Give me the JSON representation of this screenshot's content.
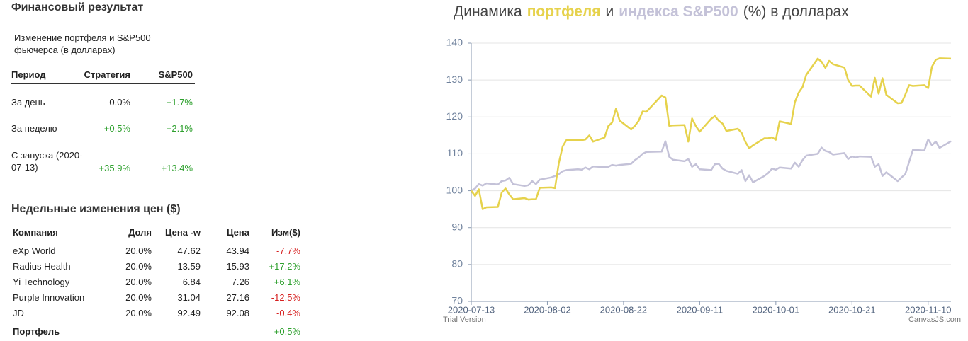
{
  "summary": {
    "title": "Финансовый результат",
    "subtitle": "Изменение портфеля и S&P500 фьючерса (в долларах)",
    "headers": [
      "Период",
      "Стратегия",
      "S&P500"
    ],
    "rows": [
      [
        "За день",
        "0.0%",
        "+1.7%"
      ],
      [
        "За неделю",
        "+0.5%",
        "+2.1%"
      ],
      [
        "С запуска (2020-07-13)",
        "+35.9%",
        "+13.4%"
      ]
    ]
  },
  "weekly": {
    "title": "Недельные изменения цен ($)",
    "headers": [
      "Компания",
      "Доля",
      "Цена -w",
      "Цена",
      "Изм($)"
    ],
    "rows": [
      [
        "eXp World",
        "20.0%",
        "47.62",
        "43.94",
        "-7.7%"
      ],
      [
        "Radius Health",
        "20.0%",
        "13.59",
        "15.93",
        "+17.2%"
      ],
      [
        "Yi Technology",
        "20.0%",
        "6.84",
        "7.26",
        "+6.1%"
      ],
      [
        "Purple Innovation",
        "20.0%",
        "31.04",
        "27.16",
        "-12.5%"
      ],
      [
        "JD",
        "20.0%",
        "92.49",
        "92.08",
        "-0.4%"
      ]
    ],
    "total": [
      "Портфель",
      "+0.5%"
    ]
  },
  "chart_data": {
    "type": "line",
    "title_parts": [
      "Динамика",
      "и",
      "(%) в долларах"
    ],
    "watermark": "Trial Version",
    "credit": "CanvasJS.com",
    "x": [
      "2020-07-13",
      "2020-07-14",
      "2020-07-15",
      "2020-07-16",
      "2020-07-17",
      "2020-07-20",
      "2020-07-21",
      "2020-07-22",
      "2020-07-23",
      "2020-07-24",
      "2020-07-27",
      "2020-07-28",
      "2020-07-29",
      "2020-07-30",
      "2020-07-31",
      "2020-08-03",
      "2020-08-04",
      "2020-08-05",
      "2020-08-06",
      "2020-08-07",
      "2020-08-10",
      "2020-08-11",
      "2020-08-12",
      "2020-08-13",
      "2020-08-14",
      "2020-08-17",
      "2020-08-18",
      "2020-08-19",
      "2020-08-20",
      "2020-08-21",
      "2020-08-24",
      "2020-08-25",
      "2020-08-26",
      "2020-08-27",
      "2020-08-28",
      "2020-09-01",
      "2020-09-02",
      "2020-09-03",
      "2020-09-04",
      "2020-09-07",
      "2020-09-08",
      "2020-09-09",
      "2020-09-10",
      "2020-09-11",
      "2020-09-14",
      "2020-09-15",
      "2020-09-16",
      "2020-09-17",
      "2020-09-18",
      "2020-09-21",
      "2020-09-22",
      "2020-09-23",
      "2020-09-24",
      "2020-09-25",
      "2020-09-28",
      "2020-09-29",
      "2020-09-30",
      "2020-10-01",
      "2020-10-02",
      "2020-10-05",
      "2020-10-06",
      "2020-10-07",
      "2020-10-08",
      "2020-10-09",
      "2020-10-12",
      "2020-10-13",
      "2020-10-14",
      "2020-10-15",
      "2020-10-16",
      "2020-10-19",
      "2020-10-20",
      "2020-10-21",
      "2020-10-22",
      "2020-10-23",
      "2020-10-26",
      "2020-10-27",
      "2020-10-28",
      "2020-10-29",
      "2020-10-30",
      "2020-11-02",
      "2020-11-03",
      "2020-11-04",
      "2020-11-05",
      "2020-11-06",
      "2020-11-09",
      "2020-11-10",
      "2020-11-11",
      "2020-11-12",
      "2020-11-13",
      "2020-11-16"
    ],
    "series": [
      {
        "name": "портфеля",
        "color": "#e6d24c",
        "values": [
          100,
          98.6,
          100.4,
          95,
          95.5,
          95.6,
          99.5,
          100.6,
          99,
          97.7,
          98,
          97.6,
          97.7,
          97.7,
          100.8,
          100.9,
          100.7,
          107.5,
          112,
          113.7,
          113.8,
          113.7,
          113.9,
          115,
          113.3,
          114.4,
          117.5,
          118.5,
          122.2,
          119,
          116.6,
          117.6,
          119,
          121.5,
          121.4,
          125.8,
          125.3,
          117.6,
          117.7,
          117.8,
          113.3,
          119.6,
          117.5,
          116,
          119.5,
          120.2,
          119,
          118.2,
          116.2,
          116.8,
          115.7,
          113.2,
          111.5,
          112.3,
          114.2,
          114.2,
          114.5,
          113.8,
          118.8,
          118.1,
          124,
          126.6,
          128.1,
          131.4,
          135.8,
          135,
          133.3,
          135.2,
          134.3,
          133.4,
          130,
          128.4,
          128.5,
          128.5,
          125.5,
          130.6,
          126.3,
          130.5,
          126,
          123.7,
          123.8,
          126,
          128.6,
          128.4,
          128.6,
          127.8,
          133.6,
          135.5,
          135.9,
          135.8
        ]
      },
      {
        "name": "индекса S&P500",
        "color": "#c4c2d8",
        "values": [
          100,
          100.6,
          101.8,
          101.4,
          102,
          101.7,
          102.6,
          102.8,
          103.5,
          101.8,
          101.3,
          101.5,
          102.6,
          101.8,
          103,
          103.6,
          104,
          104.5,
          105.3,
          105.6,
          105.8,
          105.7,
          106.3,
          105.8,
          106.6,
          106.4,
          106.5,
          107,
          106.8,
          107,
          107.3,
          108.3,
          109,
          110,
          110.5,
          110.6,
          113.4,
          109.2,
          108.4,
          108,
          108.6,
          106.5,
          107.2,
          105.8,
          105.6,
          107.2,
          107.3,
          106,
          105.4,
          104.6,
          105.6,
          102.6,
          104.2,
          102.3,
          104,
          104.8,
          106,
          105.7,
          106.3,
          106,
          107.6,
          106.5,
          108.3,
          109.5,
          110,
          111.7,
          110.8,
          110.5,
          109.8,
          110.2,
          108.6,
          109.3,
          109,
          109.3,
          109.2,
          106.5,
          107.2,
          104,
          105,
          102.6,
          103.6,
          104.5,
          107.8,
          111.1,
          110.9,
          113.9,
          112.3,
          113.3,
          111.6,
          113.4
        ]
      }
    ],
    "xlim": [
      "2020-07-13",
      "2020-11-16"
    ],
    "xticks": [
      "2020-07-13",
      "2020-08-02",
      "2020-08-22",
      "2020-09-11",
      "2020-10-01",
      "2020-10-21",
      "2020-11-10"
    ],
    "ylim": [
      70,
      140
    ],
    "yticks": [
      70,
      80,
      90,
      100,
      110,
      120,
      130,
      140
    ],
    "grid": true
  }
}
